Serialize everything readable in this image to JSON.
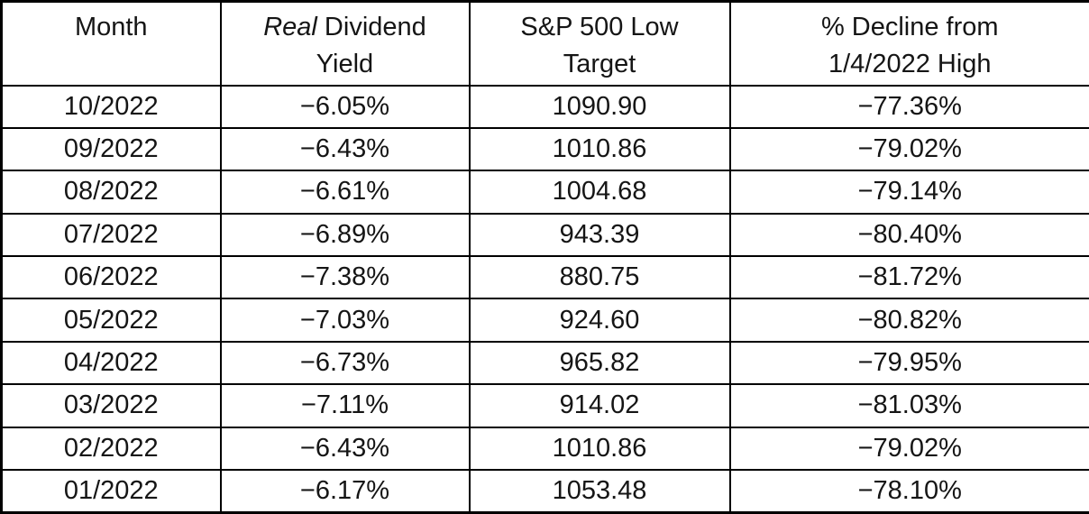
{
  "colors": {
    "negative_yield_red": "#c00000",
    "text_black": "#151515",
    "border_black": "#000000",
    "background": "#ffffff"
  },
  "header": {
    "month": "Month",
    "yield_italic": "Real",
    "yield_line1_rest": " Dividend",
    "yield_line2": "Yield",
    "target_line1": "S&P 500 Low",
    "target_line2": "Target",
    "decline_line1": "% Decline from",
    "decline_line2": "1/4/2022 High"
  },
  "chart_data": {
    "type": "table",
    "title": "",
    "columns": [
      "Month",
      "Real Dividend Yield",
      "S&P 500 Low Target",
      "% Decline from 1/4/2022 High"
    ],
    "rows": [
      {
        "month": "10/2022",
        "real_dividend_yield": "−6.05%",
        "sp500_low_target": "1090.90",
        "pct_decline_from_high": "−77.36%"
      },
      {
        "month": "09/2022",
        "real_dividend_yield": "−6.43%",
        "sp500_low_target": "1010.86",
        "pct_decline_from_high": "−79.02%"
      },
      {
        "month": "08/2022",
        "real_dividend_yield": "−6.61%",
        "sp500_low_target": "1004.68",
        "pct_decline_from_high": "−79.14%"
      },
      {
        "month": "07/2022",
        "real_dividend_yield": "−6.89%",
        "sp500_low_target": "943.39",
        "pct_decline_from_high": "−80.40%"
      },
      {
        "month": "06/2022",
        "real_dividend_yield": "−7.38%",
        "sp500_low_target": "880.75",
        "pct_decline_from_high": "−81.72%"
      },
      {
        "month": "05/2022",
        "real_dividend_yield": "−7.03%",
        "sp500_low_target": "924.60",
        "pct_decline_from_high": "−80.82%"
      },
      {
        "month": "04/2022",
        "real_dividend_yield": "−6.73%",
        "sp500_low_target": "965.82",
        "pct_decline_from_high": "−79.95%"
      },
      {
        "month": "03/2022",
        "real_dividend_yield": "−7.11%",
        "sp500_low_target": "914.02",
        "pct_decline_from_high": "−81.03%"
      },
      {
        "month": "02/2022",
        "real_dividend_yield": "−6.43%",
        "sp500_low_target": "1010.86",
        "pct_decline_from_high": "−79.02%"
      },
      {
        "month": "01/2022",
        "real_dividend_yield": "−6.17%",
        "sp500_low_target": "1053.48",
        "pct_decline_from_high": "−78.10%"
      }
    ]
  }
}
